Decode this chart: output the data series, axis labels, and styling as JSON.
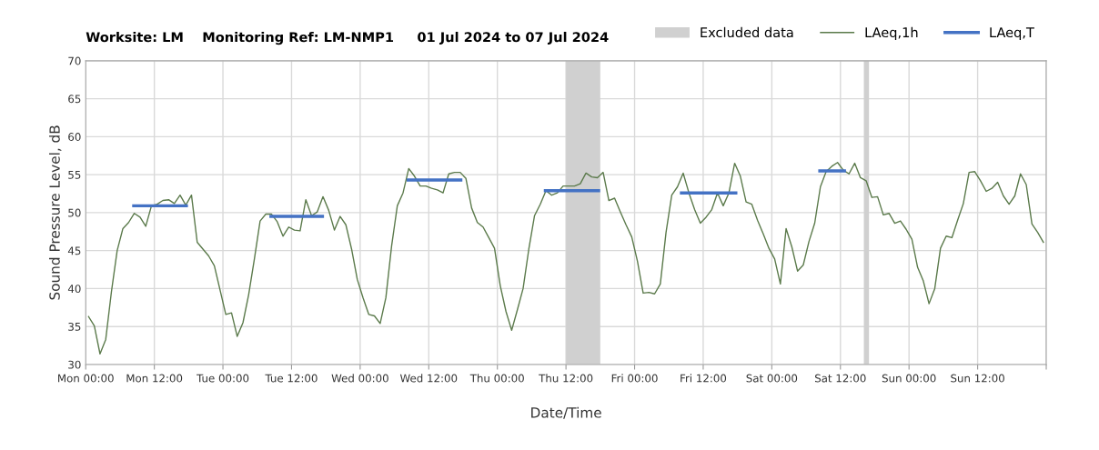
{
  "chart_data": {
    "type": "line",
    "title": "Worksite: LM    Monitoring Ref: LM-NMP1     01 Jul 2024 to 07 Jul 2024",
    "xlabel": "Date/Time",
    "ylabel": "Sound Pressure Level, dB",
    "xlim": [
      "2024-07-01T00:00",
      "2024-07-08T00:00"
    ],
    "xticks": [
      {
        "value": "2024-07-01T00:00",
        "label": "Mon 00:00"
      },
      {
        "value": "2024-07-01T12:00",
        "label": "Mon 12:00"
      },
      {
        "value": "2024-07-02T00:00",
        "label": "Tue 00:00"
      },
      {
        "value": "2024-07-02T12:00",
        "label": "Tue 12:00"
      },
      {
        "value": "2024-07-03T00:00",
        "label": "Wed 00:00"
      },
      {
        "value": "2024-07-03T12:00",
        "label": "Wed 12:00"
      },
      {
        "value": "2024-07-04T00:00",
        "label": "Thu 00:00"
      },
      {
        "value": "2024-07-04T12:00",
        "label": "Thu 12:00"
      },
      {
        "value": "2024-07-05T00:00",
        "label": "Fri 00:00"
      },
      {
        "value": "2024-07-05T12:00",
        "label": "Fri 12:00"
      },
      {
        "value": "2024-07-06T00:00",
        "label": "Sat 00:00"
      },
      {
        "value": "2024-07-06T12:00",
        "label": "Sat 12:00"
      },
      {
        "value": "2024-07-07T00:00",
        "label": "Sun 00:00"
      },
      {
        "value": "2024-07-07T12:00",
        "label": "Sun 12:00"
      },
      {
        "value": "2024-07-08T00:00",
        "label": null
      }
    ],
    "ylim": [
      30,
      70
    ],
    "yticks": [
      30,
      35,
      40,
      45,
      50,
      55,
      60,
      65,
      70
    ],
    "grid": true,
    "legend": "top right",
    "bands": [
      {
        "axis": "x",
        "from": "2024-07-04T12:00",
        "to": "2024-07-04T18:00",
        "label": "Excluded data",
        "color": "#d0d0d0"
      },
      {
        "axis": "x",
        "from": "2024-07-06T16:06",
        "to": "2024-07-06T17:00",
        "color": "#d0d0d0"
      }
    ],
    "series": [
      {
        "name": "LAeq,1h",
        "color": "#5b7a4b",
        "x": [
          "2024-07-01T00:30",
          "2024-07-01T01:30",
          "2024-07-01T02:30",
          "2024-07-01T03:30",
          "2024-07-01T04:30",
          "2024-07-01T05:30",
          "2024-07-01T06:30",
          "2024-07-01T07:30",
          "2024-07-01T08:30",
          "2024-07-01T09:30",
          "2024-07-01T10:30",
          "2024-07-01T11:30",
          "2024-07-01T12:30",
          "2024-07-01T13:30",
          "2024-07-01T14:30",
          "2024-07-01T15:30",
          "2024-07-01T16:30",
          "2024-07-01T17:30",
          "2024-07-01T18:30",
          "2024-07-01T19:30",
          "2024-07-01T20:30",
          "2024-07-01T21:30",
          "2024-07-01T22:30",
          "2024-07-01T23:30",
          "2024-07-02T00:30",
          "2024-07-02T01:30",
          "2024-07-02T02:30",
          "2024-07-02T03:30",
          "2024-07-02T04:30",
          "2024-07-02T05:30",
          "2024-07-02T06:30",
          "2024-07-02T07:30",
          "2024-07-02T08:30",
          "2024-07-02T09:30",
          "2024-07-02T10:30",
          "2024-07-02T11:30",
          "2024-07-02T12:30",
          "2024-07-02T13:30",
          "2024-07-02T14:30",
          "2024-07-02T15:30",
          "2024-07-02T16:30",
          "2024-07-02T17:30",
          "2024-07-02T18:30",
          "2024-07-02T19:30",
          "2024-07-02T20:30",
          "2024-07-02T21:30",
          "2024-07-02T22:30",
          "2024-07-02T23:30",
          "2024-07-03T00:30",
          "2024-07-03T01:30",
          "2024-07-03T02:30",
          "2024-07-03T03:30",
          "2024-07-03T04:30",
          "2024-07-03T05:30",
          "2024-07-03T06:30",
          "2024-07-03T07:30",
          "2024-07-03T08:30",
          "2024-07-03T09:30",
          "2024-07-03T10:30",
          "2024-07-03T11:30",
          "2024-07-03T12:30",
          "2024-07-03T13:30",
          "2024-07-03T14:30",
          "2024-07-03T15:30",
          "2024-07-03T16:30",
          "2024-07-03T17:30",
          "2024-07-03T18:30",
          "2024-07-03T19:30",
          "2024-07-03T20:30",
          "2024-07-03T21:30",
          "2024-07-03T22:30",
          "2024-07-03T23:30",
          "2024-07-04T00:30",
          "2024-07-04T01:30",
          "2024-07-04T02:30",
          "2024-07-04T03:30",
          "2024-07-04T04:30",
          "2024-07-04T05:30",
          "2024-07-04T06:30",
          "2024-07-04T07:30",
          "2024-07-04T08:30",
          "2024-07-04T09:30",
          "2024-07-04T10:30",
          "2024-07-04T11:30",
          "2024-07-04T12:30",
          "2024-07-04T13:30",
          "2024-07-04T14:30",
          "2024-07-04T15:30",
          "2024-07-04T16:30",
          "2024-07-04T17:30",
          "2024-07-04T18:30",
          "2024-07-04T19:30",
          "2024-07-04T20:30",
          "2024-07-04T21:30",
          "2024-07-04T22:30",
          "2024-07-04T23:30",
          "2024-07-05T00:30",
          "2024-07-05T01:30",
          "2024-07-05T02:30",
          "2024-07-05T03:30",
          "2024-07-05T04:30",
          "2024-07-05T05:30",
          "2024-07-05T06:30",
          "2024-07-05T07:30",
          "2024-07-05T08:30",
          "2024-07-05T09:30",
          "2024-07-05T10:30",
          "2024-07-05T11:30",
          "2024-07-05T12:30",
          "2024-07-05T13:30",
          "2024-07-05T14:30",
          "2024-07-05T15:30",
          "2024-07-05T16:30",
          "2024-07-05T17:30",
          "2024-07-05T18:30",
          "2024-07-05T19:30",
          "2024-07-05T20:30",
          "2024-07-05T21:30",
          "2024-07-05T22:30",
          "2024-07-05T23:30",
          "2024-07-06T00:30",
          "2024-07-06T01:30",
          "2024-07-06T02:30",
          "2024-07-06T03:30",
          "2024-07-06T04:30",
          "2024-07-06T05:30",
          "2024-07-06T06:30",
          "2024-07-06T07:30",
          "2024-07-06T08:30",
          "2024-07-06T09:30",
          "2024-07-06T10:30",
          "2024-07-06T11:30",
          "2024-07-06T12:30",
          "2024-07-06T13:30",
          "2024-07-06T14:30",
          "2024-07-06T15:30",
          "2024-07-06T16:30",
          "2024-07-06T17:30",
          "2024-07-06T18:30",
          "2024-07-06T19:30",
          "2024-07-06T20:30",
          "2024-07-06T21:30",
          "2024-07-06T22:30",
          "2024-07-06T23:30",
          "2024-07-07T00:30",
          "2024-07-07T01:30",
          "2024-07-07T02:30",
          "2024-07-07T03:30",
          "2024-07-07T04:30",
          "2024-07-07T05:30",
          "2024-07-07T06:30",
          "2024-07-07T07:30",
          "2024-07-07T08:30",
          "2024-07-07T09:30",
          "2024-07-07T10:30",
          "2024-07-07T11:30",
          "2024-07-07T12:30",
          "2024-07-07T13:30",
          "2024-07-07T14:30",
          "2024-07-07T15:30",
          "2024-07-07T16:30",
          "2024-07-07T17:30",
          "2024-07-07T18:30",
          "2024-07-07T19:30",
          "2024-07-07T20:30",
          "2024-07-07T21:30",
          "2024-07-07T22:30",
          "2024-07-07T23:30"
        ],
        "values": [
          36.3,
          35.1,
          31.4,
          33.3,
          39.6,
          45.0,
          47.9,
          48.7,
          49.9,
          49.4,
          48.2,
          50.9,
          51.1,
          51.6,
          51.7,
          51.2,
          52.3,
          51.0,
          52.3,
          46.1,
          45.2,
          44.3,
          43.0,
          39.8,
          36.6,
          36.8,
          33.7,
          35.5,
          39.2,
          43.9,
          48.9,
          49.8,
          49.8,
          48.8,
          46.9,
          48.1,
          47.7,
          47.6,
          51.7,
          49.6,
          50.1,
          52.1,
          50.3,
          47.7,
          49.5,
          48.4,
          45.2,
          41.2,
          38.8,
          36.6,
          36.4,
          35.4,
          38.8,
          45.6,
          50.9,
          52.6,
          55.8,
          54.8,
          53.5,
          53.5,
          53.2,
          53.0,
          52.6,
          55.1,
          55.3,
          55.3,
          54.5,
          50.6,
          48.7,
          48.1,
          46.7,
          45.3,
          40.4,
          37.0,
          34.5,
          37.2,
          40.0,
          45.2,
          49.6,
          51.1,
          52.9,
          52.3,
          52.6,
          53.5,
          53.5,
          53.5,
          53.8,
          55.2,
          54.7,
          54.6,
          55.3,
          51.6,
          51.9,
          50.1,
          48.4,
          46.8,
          43.6,
          39.4,
          39.5,
          39.3,
          40.6,
          47.4,
          52.3,
          53.4,
          55.2,
          52.6,
          50.4,
          48.6,
          49.4,
          50.4,
          52.6,
          50.9,
          52.6,
          56.5,
          54.8,
          51.4,
          51.1,
          49.0,
          47.2,
          45.3,
          43.9,
          40.6,
          47.9,
          45.5,
          42.3,
          43.1,
          46.2,
          48.6,
          53.4,
          55.4,
          56.1,
          56.6,
          55.6,
          55.1,
          56.5,
          54.6,
          54.2,
          52.0,
          52.1,
          49.7,
          49.9,
          48.6,
          48.9,
          47.8,
          46.5,
          42.8,
          41.0,
          38.0,
          40.0,
          45.3,
          46.9,
          46.7,
          49.0,
          51.2,
          55.3,
          55.4,
          54.2,
          52.8,
          53.2,
          54.0,
          52.2,
          51.1,
          52.2,
          55.1,
          53.7,
          48.5,
          47.4,
          46.1
        ]
      },
      {
        "name": "LAeq,T",
        "color": "#4472c4",
        "x": [
          "2024-07-01T08:24",
          "2024-07-01T17:36",
          "2024-07-01T20:00",
          "2024-07-02T08:24",
          "2024-07-02T17:24",
          "2024-07-02T20:00",
          "2024-07-03T08:24",
          "2024-07-03T17:36",
          "2024-07-03T20:00",
          "2024-07-04T08:24",
          "2024-07-04T17:42",
          "2024-07-04T20:00",
          "2024-07-05T08:12",
          "2024-07-05T17:42",
          "2024-07-05T20:00",
          "2024-07-06T08:24",
          "2024-07-06T12:42"
        ],
        "values": [
          50.9,
          50.9,
          null,
          49.5,
          49.5,
          null,
          54.3,
          54.3,
          null,
          52.9,
          52.9,
          null,
          52.6,
          52.6,
          null,
          55.5,
          55.5
        ]
      }
    ]
  }
}
